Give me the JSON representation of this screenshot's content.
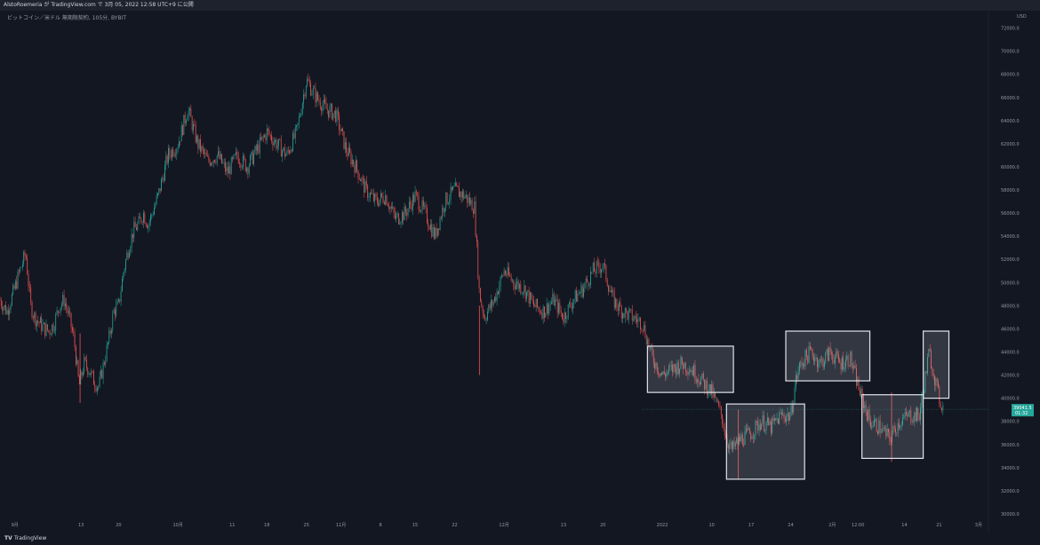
{
  "header": {
    "title": "AlstoRoemeria が TradingView.com で 3月 05, 2022 12:58 UTC+9 に公開",
    "symbol": "ビットコイン／米ドル 無期限契約, 105分, BYBIT"
  },
  "footer": {
    "logo_mark": "TV",
    "brand": "TradingView"
  },
  "colors": {
    "up": "#26a69a",
    "down": "#ef5350",
    "box": "#e0e3eb",
    "tag": "#26a69a"
  },
  "chart_data": {
    "type": "candlestick",
    "y_unit": "USD",
    "ylim": [
      29000,
      73500
    ],
    "y_ticks": [
      "72000.0",
      "70000.0",
      "68000.0",
      "66000.0",
      "64000.0",
      "62000.0",
      "60000.0",
      "58000.0",
      "56000.0",
      "54000.0",
      "52000.0",
      "50000.0",
      "48000.0",
      "46000.0",
      "44000.0",
      "42000.0",
      "40000.0",
      "38000.0",
      "36000.0",
      "34000.0",
      "32000.0",
      "30000.0"
    ],
    "x_ticks": [
      "9月",
      "13",
      "20",
      "10月",
      "11",
      "18",
      "25",
      "11月",
      "8",
      "15",
      "22",
      "12月",
      "13",
      "20",
      "2022",
      "10",
      "17",
      "24",
      "2月",
      "12:00",
      "14",
      "21",
      "3月"
    ],
    "last_price": {
      "value": 39041.5,
      "label": "39041.5",
      "countdown": "01:32"
    },
    "price_path": [
      [
        0,
        48500
      ],
      [
        0.7,
        47500
      ],
      [
        1.3,
        49000
      ],
      [
        2,
        51000
      ],
      [
        2.6,
        52500
      ],
      [
        3.1,
        48000
      ],
      [
        3.5,
        47000
      ],
      [
        4,
        46500
      ],
      [
        4.5,
        46000
      ],
      [
        5,
        45800
      ],
      [
        5.5,
        46500
      ],
      [
        6,
        48000
      ],
      [
        6.5,
        48500
      ],
      [
        7,
        47000
      ],
      [
        7.5,
        45000
      ],
      [
        8,
        41000
      ],
      [
        8.5,
        43000
      ],
      [
        9,
        42500
      ],
      [
        9.5,
        41500
      ],
      [
        10,
        41000
      ],
      [
        10.5,
        43000
      ],
      [
        11,
        45000
      ],
      [
        11.5,
        47500
      ],
      [
        12,
        48000
      ],
      [
        12.5,
        51000
      ],
      [
        13,
        53000
      ],
      [
        13.5,
        54500
      ],
      [
        14,
        55000
      ],
      [
        14.5,
        56000
      ],
      [
        15,
        55000
      ],
      [
        16,
        57500
      ],
      [
        17,
        61000
      ],
      [
        18,
        62000
      ],
      [
        19,
        65000
      ],
      [
        20,
        62000
      ],
      [
        21,
        60500
      ],
      [
        22,
        61000
      ],
      [
        23,
        59500
      ],
      [
        24,
        61000
      ],
      [
        25,
        60000
      ],
      [
        26,
        61500
      ],
      [
        27,
        63000
      ],
      [
        28,
        62000
      ],
      [
        29,
        61000
      ],
      [
        30,
        63000
      ],
      [
        31,
        67500
      ],
      [
        32,
        66000
      ],
      [
        33,
        65000
      ],
      [
        34,
        64500
      ],
      [
        35,
        61500
      ],
      [
        36,
        60000
      ],
      [
        37,
        58000
      ],
      [
        38,
        57000
      ],
      [
        39,
        57500
      ],
      [
        40,
        55500
      ],
      [
        41,
        56000
      ],
      [
        42,
        57500
      ],
      [
        43,
        56000
      ],
      [
        44,
        54000
      ],
      [
        45,
        57000
      ],
      [
        46,
        58000
      ],
      [
        47,
        57500
      ],
      [
        48,
        56500
      ],
      [
        48.5,
        49000
      ],
      [
        49,
        47000
      ],
      [
        50,
        48500
      ],
      [
        51,
        51000
      ],
      [
        52,
        50000
      ],
      [
        53,
        49500
      ],
      [
        54,
        48000
      ],
      [
        55,
        47500
      ],
      [
        56,
        48500
      ],
      [
        57,
        47000
      ],
      [
        58,
        48500
      ],
      [
        59,
        49500
      ],
      [
        60,
        51000
      ],
      [
        61,
        51500
      ],
      [
        62,
        48500
      ],
      [
        63,
        47500
      ],
      [
        64,
        47000
      ],
      [
        65,
        46500
      ],
      [
        66,
        43500
      ],
      [
        67,
        42000
      ],
      [
        68,
        42500
      ],
      [
        69,
        43000
      ],
      [
        70,
        42500
      ],
      [
        71,
        41500
      ],
      [
        72,
        40500
      ],
      [
        73,
        38500
      ],
      [
        73.5,
        36500
      ],
      [
        74,
        35500
      ],
      [
        75,
        36500
      ],
      [
        76,
        37000
      ],
      [
        77,
        38000
      ],
      [
        78,
        37500
      ],
      [
        79,
        38500
      ],
      [
        80,
        38500
      ],
      [
        80.5,
        41500
      ],
      [
        81,
        43000
      ],
      [
        82,
        44000
      ],
      [
        83,
        43000
      ],
      [
        84,
        44000
      ],
      [
        85,
        43000
      ],
      [
        86,
        43500
      ],
      [
        87,
        40500
      ],
      [
        88,
        38000
      ],
      [
        89,
        37500
      ],
      [
        90,
        36500
      ],
      [
        91,
        38000
      ],
      [
        92,
        38500
      ],
      [
        93,
        38500
      ],
      [
        94,
        44000
      ],
      [
        95,
        40000
      ],
      [
        95.5,
        39000
      ]
    ],
    "spikes": [
      {
        "x": 8.1,
        "low": 39600
      },
      {
        "x": 48.5,
        "low": 42000
      },
      {
        "x": 74.7,
        "low": 33000
      },
      {
        "x": 90.2,
        "low": 34500
      }
    ],
    "annotations": [
      {
        "x": [
          65.5,
          74.2
        ],
        "y": [
          40500,
          44500
        ]
      },
      {
        "x": [
          73.5,
          81.4
        ],
        "y": [
          33000,
          39500
        ]
      },
      {
        "x": [
          79.5,
          88.0
        ],
        "y": [
          41500,
          45800
        ]
      },
      {
        "x": [
          87.2,
          93.4
        ],
        "y": [
          34800,
          40300
        ]
      },
      {
        "x": [
          93.4,
          96.0
        ],
        "y": [
          40000,
          45800
        ]
      }
    ]
  }
}
